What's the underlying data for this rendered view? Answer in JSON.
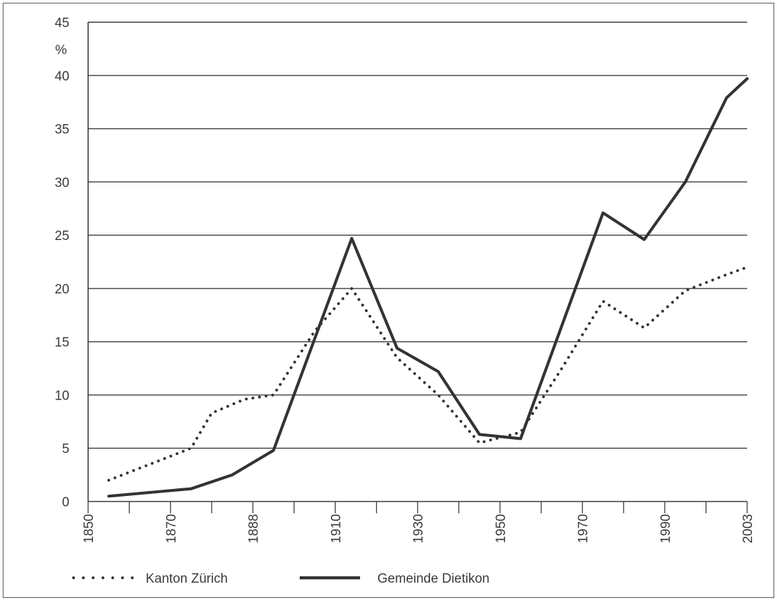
{
  "chart_data": {
    "type": "line",
    "title": "",
    "xlabel": "",
    "ylabel": "%",
    "ylim": [
      0,
      45
    ],
    "xlim": [
      1850,
      2010
    ],
    "y_ticks": [
      "0",
      "5",
      "10",
      "15",
      "20",
      "25",
      "30",
      "35",
      "40",
      "45"
    ],
    "x_tick_labels": [
      "1850",
      "1870",
      "1888",
      "1910",
      "1930",
      "1950",
      "1970",
      "1990",
      "2003"
    ],
    "grid": "horizontal",
    "legend_position": "bottom",
    "series": [
      {
        "name": "Kanton Zürich",
        "style": "dotted",
        "color": "#333333",
        "x": [
          1855,
          1875,
          1880,
          1888,
          1895,
          1905,
          1914,
          1925,
          1935,
          1945,
          1955,
          1965,
          1975,
          1985,
          1995,
          2005,
          2010
        ],
        "values": [
          2.0,
          5.0,
          8.3,
          9.6,
          10.0,
          16.0,
          20.0,
          13.5,
          10.0,
          5.5,
          6.5,
          12.5,
          18.8,
          16.3,
          19.8,
          21.3,
          22.0
        ]
      },
      {
        "name": "Gemeinde Dietikon",
        "style": "solid",
        "color": "#333333",
        "x": [
          1855,
          1875,
          1885,
          1895,
          1914,
          1925,
          1935,
          1945,
          1955,
          1965,
          1975,
          1985,
          1995,
          2005,
          2010
        ],
        "values": [
          0.5,
          1.2,
          2.5,
          4.8,
          24.7,
          14.4,
          12.2,
          6.3,
          5.9,
          16.5,
          27.1,
          24.6,
          30.0,
          37.9,
          39.7
        ]
      }
    ]
  },
  "legend": {
    "items": [
      {
        "label": "Kanton Zürich"
      },
      {
        "label": "Gemeinde Dietikon"
      }
    ]
  }
}
